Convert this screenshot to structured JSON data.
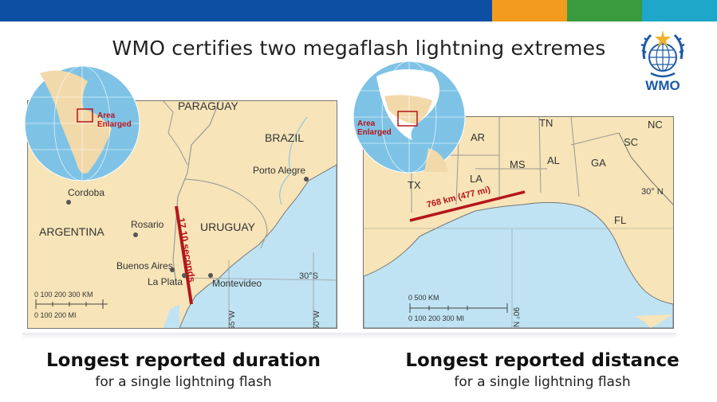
{
  "colors": {
    "bar_blue": "#0d4fa3",
    "bar_orange": "#f29b1d",
    "bar_green": "#3a9a3e",
    "bar_teal": "#1fa7c9",
    "land": "#f7e4b8",
    "sea": "#bfe3f3",
    "flash_line": "#b5151b"
  },
  "title": "WMO certifies two megaflash lightning extremes",
  "logo": {
    "text": "WMO"
  },
  "left_map": {
    "globe_label": "Area Enlarged",
    "countries": {
      "paraguay": "PARAGUAY",
      "brazil": "BRAZIL",
      "argentina": "ARGENTINA",
      "uruguay": "URUGUAY"
    },
    "cities": {
      "porto_alegre": "Porto Alegre",
      "cordoba": "Cordoba",
      "rosario": "Rosario",
      "buenos_aires": "Buenos Aires",
      "la_plata": "La Plata",
      "montevideo": "Montevideo"
    },
    "flash_label": "17.10 seconds",
    "latitude": "30°S",
    "longitudes": [
      "55°W",
      "50°W"
    ],
    "scale_km": "0   100  200  300 KM",
    "scale_mi": "0      100      200 MI"
  },
  "right_map": {
    "globe_label": "Area Enlarged",
    "states": {
      "tn": "TN",
      "nc": "NC",
      "ar": "AR",
      "sc": "SC",
      "al": "AL",
      "ga": "GA",
      "ms": "MS",
      "la": "LA",
      "tx": "TX",
      "fl": "FL"
    },
    "flash_label": "768 km (477 mi)",
    "latitude": "30° N",
    "longitude": "90° N",
    "scale_km": "0                  500 KM",
    "scale_mi": "0   100  200  300 MI"
  },
  "captions": {
    "left_head": "Longest reported duration",
    "left_sub": "for a single lightning flash",
    "right_head": "Longest reported distance",
    "right_sub": "for a single lightning flash"
  }
}
